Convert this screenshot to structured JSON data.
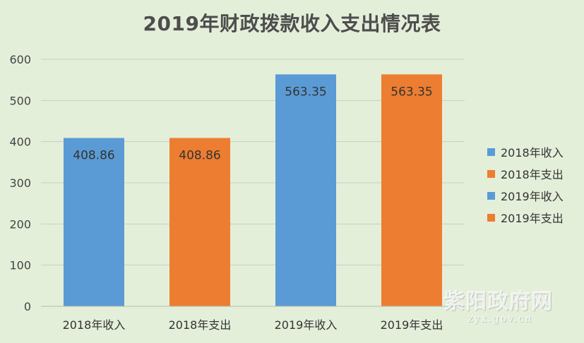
{
  "chart_data": {
    "type": "bar",
    "title": "2019年财政拨款收入支出情况表",
    "categories": [
      "2018年收入",
      "2018年支出",
      "2019年收入",
      "2019年支出"
    ],
    "values": [
      408.86,
      408.86,
      563.35,
      563.35
    ],
    "data_labels": [
      "408.86",
      "408.86",
      "563.35",
      "563.35"
    ],
    "bar_colors": [
      "#5b9bd5",
      "#ed7d31",
      "#5b9bd5",
      "#ed7d31"
    ],
    "ylim": [
      0,
      600
    ],
    "yticks": [
      0,
      100,
      200,
      300,
      400,
      500,
      600
    ],
    "grid": true,
    "legend_position": "right",
    "legend": [
      {
        "label": "2018年收入",
        "color": "#5b9bd5"
      },
      {
        "label": "2018年支出",
        "color": "#ed7d31"
      },
      {
        "label": "2019年收入",
        "color": "#5b9bd5"
      },
      {
        "label": "2019年支出",
        "color": "#ed7d31"
      }
    ]
  },
  "watermark": {
    "text": "紫阳政府网",
    "url": "zyx.gov.cn"
  }
}
